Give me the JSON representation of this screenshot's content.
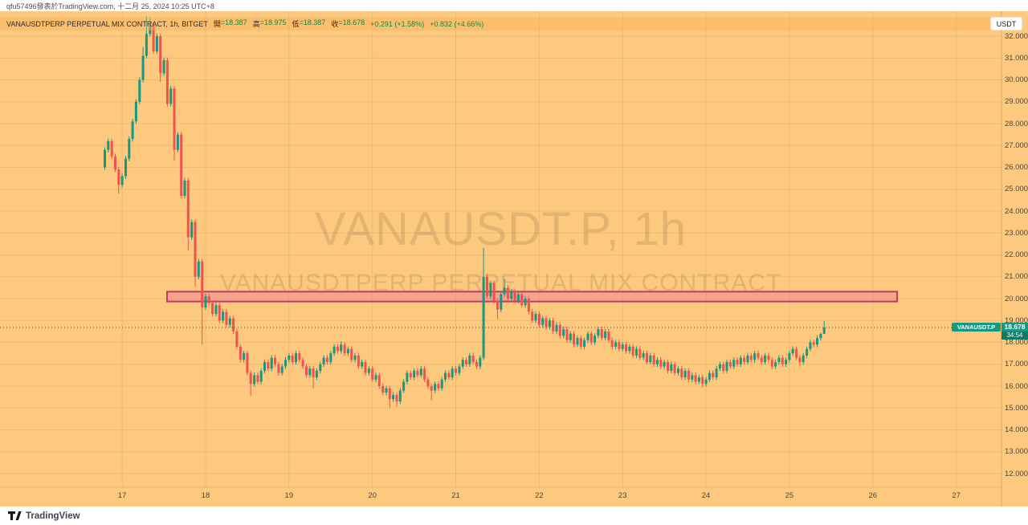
{
  "header_strip": {
    "text": "qfu57496發表於TradingView.com, 十二月 25, 2024 10:25 UTC+8"
  },
  "legend": {
    "symbol": "VANAUSDTPERP PERPETUAL MIX CONTRACT",
    "interval_exchange": ", 1h, BITGET",
    "fields": [
      {
        "label": "開",
        "value": "=18.387"
      },
      {
        "label": "高",
        "value": "=18.975"
      },
      {
        "label": "低",
        "value": "=18.387"
      },
      {
        "label": "收",
        "value": "=18.678"
      }
    ],
    "change_bar": "+0.291 (+1.58%)",
    "change_session": "+0.832 (+4.66%)"
  },
  "toolbar": {
    "currency_label": "USDT"
  },
  "watermark": {
    "title": "VANAUSDT.P, 1h",
    "subtitle": "VANAUSDTPERP PERPETUAL MIX CONTRACT"
  },
  "price_scale": {
    "symbol_label": "VANAUSDT.P",
    "last_price": "18.678",
    "countdown": "34:54"
  },
  "footer": {
    "brand": "TradingView"
  },
  "colors": {
    "chart_bg": "#fdc97f",
    "up": "#179981",
    "down": "#ef5350",
    "grid": "rgba(121,86,36,0.12)",
    "axis_text": "#4e463b",
    "legend_text": "#2b2b2b",
    "legend_value": "#0f8a47",
    "watermark": "rgba(94,74,46,0.17)",
    "zone_border": "#c03a6b",
    "zone_fill": "rgba(233,121,152,0.45)",
    "badge_bg": "#179981",
    "countdown_bg": "#0d7a64",
    "price_line": "#5f5240"
  },
  "chart_data": {
    "type": "candlestick",
    "title": "VANAUSDT.P, 1h",
    "symbol": "VANAUSDT.P",
    "interval": "1h",
    "exchange": "BITGET",
    "last_ohlc": {
      "open": 18.387,
      "high": 18.975,
      "low": 18.387,
      "close": 18.678
    },
    "change_bar": "+0.291 (+1.58%)",
    "change_session": "+0.832 (+4.66%)",
    "price_axis": {
      "min": 12,
      "max": 32,
      "step": 1
    },
    "time_axis_days": [
      "17",
      "18",
      "19",
      "20",
      "21",
      "22",
      "23",
      "24",
      "25",
      "26",
      "27"
    ],
    "hours_before_first_day_tick": 5,
    "first_open": 26.0,
    "default_wick": 0.12,
    "closes": [
      26.8,
      27.2,
      26.5,
      25.9,
      25.2,
      25.6,
      26.4,
      27.3,
      28.1,
      29.0,
      30.0,
      31.1,
      32.1,
      32.5,
      31.3,
      32.0,
      30.3,
      30.9,
      28.9,
      29.6,
      26.8,
      27.5,
      24.7,
      25.4,
      22.8,
      23.5,
      21.0,
      21.7,
      19.6,
      20.1,
      19.8,
      19.3,
      19.7,
      19.0,
      19.4,
      18.8,
      19.1,
      18.5,
      17.8,
      17.2,
      17.5,
      16.6,
      16.1,
      16.5,
      16.2,
      16.7,
      17.1,
      16.8,
      17.3,
      17.0,
      16.6,
      16.9,
      17.2,
      17.4,
      17.1,
      17.5,
      17.2,
      16.9,
      16.5,
      16.8,
      16.4,
      16.7,
      17.0,
      17.3,
      17.1,
      17.5,
      17.8,
      17.6,
      17.9,
      17.5,
      17.7,
      17.2,
      17.4,
      16.9,
      17.1,
      16.6,
      16.8,
      16.3,
      16.5,
      16.0,
      15.7,
      15.9,
      15.4,
      15.6,
      15.3,
      15.8,
      16.2,
      16.6,
      16.4,
      16.7,
      16.5,
      16.8,
      16.3,
      16.0,
      15.8,
      16.1,
      15.9,
      16.3,
      16.6,
      16.4,
      16.8,
      16.6,
      16.9,
      17.2,
      17.0,
      17.4,
      17.1,
      16.9,
      17.3,
      21.0,
      20.1,
      20.7,
      19.9,
      19.5,
      20.2,
      20.5,
      20.0,
      20.3,
      19.9,
      20.2,
      19.7,
      20.0,
      19.4,
      19.0,
      19.3,
      18.8,
      19.1,
      18.7,
      19.0,
      18.5,
      18.8,
      18.3,
      18.6,
      18.1,
      18.4,
      17.9,
      18.2,
      17.8,
      18.1,
      18.4,
      18.0,
      18.3,
      18.6,
      18.2,
      18.5,
      18.1,
      17.8,
      18.0,
      17.7,
      17.9,
      17.6,
      17.8,
      17.4,
      17.7,
      17.3,
      17.5,
      17.1,
      17.4,
      17.0,
      17.2,
      16.9,
      17.1,
      16.7,
      17.0,
      16.6,
      16.8,
      16.4,
      16.7,
      16.3,
      16.5,
      16.2,
      16.4,
      16.1,
      16.3,
      16.6,
      16.4,
      16.8,
      17.0,
      16.7,
      17.1,
      16.9,
      17.2,
      17.0,
      17.3,
      17.1,
      17.4,
      17.2,
      17.5,
      17.3,
      17.1,
      17.4,
      17.2,
      16.9,
      17.1,
      17.3,
      17.0,
      17.2,
      17.5,
      17.7,
      17.3,
      17.1,
      17.4,
      17.7,
      18.0,
      17.9,
      18.2,
      18.387,
      18.678
    ],
    "overrides": {
      "4": {
        "l": 24.8
      },
      "11": {
        "h": 31.5
      },
      "12": {
        "h": 32.9
      },
      "13": {
        "h": 32.85
      },
      "16": {
        "l": 29.9
      },
      "20": {
        "l": 26.3
      },
      "24": {
        "l": 22.2
      },
      "26": {
        "l": 20.55
      },
      "28": {
        "l": 17.9
      },
      "42": {
        "l": 15.55
      },
      "60": {
        "l": 15.9
      },
      "68": {
        "h": 18.05
      },
      "82": {
        "l": 15.0
      },
      "84": {
        "l": 15.05
      },
      "94": {
        "l": 15.35
      },
      "109": {
        "h": 22.3
      },
      "113": {
        "l": 19.05
      },
      "115": {
        "h": 20.9
      },
      "172": {
        "l": 15.95
      },
      "200": {
        "l": 16.9
      },
      "206": {
        "h": 18.45
      },
      "207": {
        "o": 18.387,
        "h": 18.975,
        "l": 18.387,
        "c": 18.678
      }
    },
    "highlight_zone": {
      "price_top": 20.32,
      "price_bottom": 19.87,
      "from_candle": 17.9,
      "to_candle": 228
    },
    "price_line_value": 18.678
  }
}
